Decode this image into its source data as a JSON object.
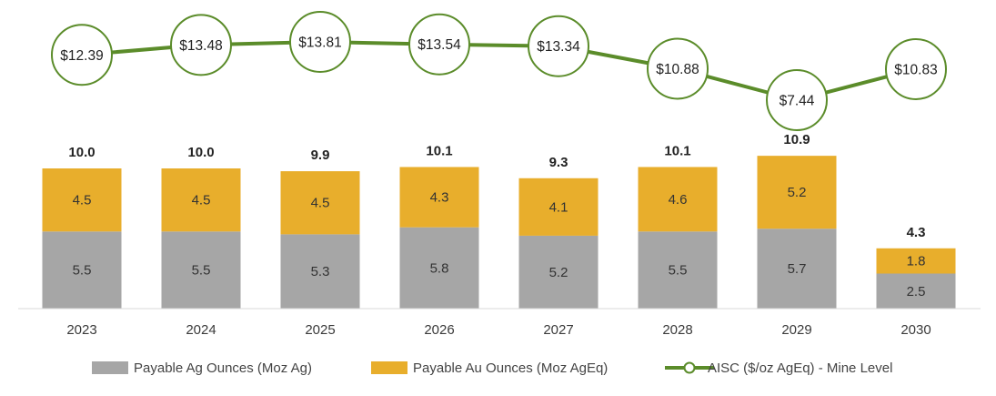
{
  "chart_data": {
    "type": "bar",
    "stacked": true,
    "categories": [
      "2023",
      "2024",
      "2025",
      "2026",
      "2027",
      "2028",
      "2029",
      "2030"
    ],
    "series": [
      {
        "name": "Payable Ag Ounces (Moz Ag)",
        "type": "bar",
        "color": "#a6a6a6",
        "values": [
          5.5,
          5.5,
          5.3,
          5.8,
          5.2,
          5.5,
          5.7,
          2.5
        ],
        "labels": [
          "5.5",
          "5.5",
          "5.3",
          "5.8",
          "5.2",
          "5.5",
          "5.7",
          "2.5"
        ]
      },
      {
        "name": "Payable Au Ounces (Moz AgEq)",
        "type": "bar",
        "color": "#e8ae2c",
        "values": [
          4.5,
          4.5,
          4.5,
          4.3,
          4.1,
          4.6,
          5.2,
          1.8
        ],
        "labels": [
          "4.5",
          "4.5",
          "4.5",
          "4.3",
          "4.1",
          "4.6",
          "5.2",
          "1.8"
        ]
      },
      {
        "name": "AISC ($/oz AgEq) - Mine Level",
        "type": "line",
        "color": "#5b8c2a",
        "values": [
          12.39,
          13.48,
          13.81,
          13.54,
          13.34,
          10.88,
          7.44,
          10.83
        ],
        "labels": [
          "$12.39",
          "$13.48",
          "$13.81",
          "$13.54",
          "$13.34",
          "$10.88",
          "$7.44",
          "$10.83"
        ]
      }
    ],
    "totals": [
      10.0,
      10.0,
      9.9,
      10.1,
      9.3,
      10.1,
      10.9,
      4.3
    ],
    "total_labels": [
      "10.0",
      "10.0",
      "9.9",
      "10.1",
      "9.3",
      "10.1",
      "10.9",
      "4.3"
    ],
    "legend": {
      "position": "bottom",
      "items": [
        "Payable Ag Ounces (Moz Ag)",
        "Payable Au Ounces (Moz AgEq)",
        "AISC ($/oz AgEq) - Mine Level"
      ]
    },
    "grid": false,
    "title": "",
    "xlabel": "",
    "ylabel": ""
  }
}
